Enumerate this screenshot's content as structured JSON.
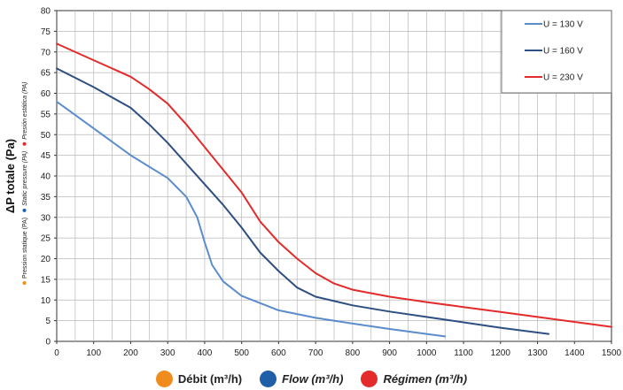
{
  "chart_data": {
    "type": "line",
    "x_ticks": [
      "0",
      "100",
      "200",
      "300",
      "400",
      "500",
      "600",
      "700",
      "800",
      "900",
      "1000",
      "1100",
      "1200",
      "1300",
      "1400",
      "1500"
    ],
    "y_ticks": [
      "0",
      "5",
      "10",
      "15",
      "20",
      "25",
      "30",
      "35",
      "40",
      "45",
      "50",
      "55",
      "60",
      "65",
      "70",
      "75",
      "80"
    ],
    "xlim": [
      0,
      1500
    ],
    "ylim": [
      0,
      80
    ],
    "grid": true,
    "ylabel": "ΔP totale (Pa)",
    "ylabel_notes": [
      {
        "text": "Pression statique (PA)",
        "color": "#f08c1e",
        "italic": false
      },
      {
        "text": "Static pressure (PA)",
        "color": "#1f5fa8",
        "italic": true
      },
      {
        "text": "Presión estática (PA)",
        "color": "#e32b2b",
        "italic": true
      }
    ],
    "legend_position": "top-right",
    "series": [
      {
        "name": "U = 130 V",
        "color": "#5b8ccc",
        "x": [
          0,
          100,
          200,
          300,
          350,
          380,
          400,
          420,
          450,
          500,
          600,
          700,
          800,
          900,
          1000,
          1050
        ],
        "y": [
          58,
          51.5,
          45,
          39.5,
          35,
          30,
          24,
          18.5,
          14.5,
          11,
          7.5,
          5.7,
          4.3,
          3,
          1.8,
          1.2
        ]
      },
      {
        "name": "U = 160 V",
        "color": "#2e4f82",
        "x": [
          0,
          100,
          200,
          250,
          300,
          350,
          400,
          450,
          500,
          550,
          600,
          650,
          700,
          800,
          900,
          1000,
          1100,
          1200,
          1330
        ],
        "y": [
          66,
          61.5,
          56.5,
          52.5,
          48,
          43,
          38,
          33,
          27.5,
          21.5,
          17,
          13,
          10.8,
          8.7,
          7.2,
          5.9,
          4.6,
          3.3,
          1.8
        ]
      },
      {
        "name": "U = 230 V",
        "color": "#e32b2b",
        "x": [
          0,
          100,
          200,
          250,
          300,
          350,
          400,
          450,
          500,
          550,
          600,
          650,
          700,
          750,
          800,
          900,
          1000,
          1100,
          1200,
          1300,
          1400,
          1500
        ],
        "y": [
          72,
          68,
          64,
          61,
          57.5,
          52.5,
          47,
          41.5,
          36,
          29,
          24,
          20,
          16.5,
          14,
          12.5,
          10.8,
          9.5,
          8.3,
          7.1,
          5.9,
          4.7,
          3.5
        ]
      }
    ]
  },
  "bottom_legend": [
    {
      "label": "Débit (m³/h)",
      "color": "#f08c1e",
      "italic": false
    },
    {
      "label": "Flow (m³/h)",
      "color": "#1f5fa8",
      "italic": true
    },
    {
      "label": "Régimen (m³/h)",
      "color": "#e32b2b",
      "italic": true
    }
  ]
}
